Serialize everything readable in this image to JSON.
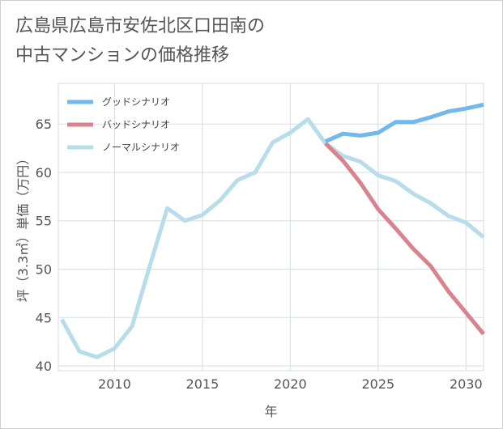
{
  "title_line1": "広島県広島市安佐北区口田南の",
  "title_line2": "中古マンションの価格推移",
  "chart_data": {
    "type": "line",
    "xlabel": "年",
    "ylabel": "坪（3.3㎡）単価（万円）",
    "xlim": [
      2006.8,
      2031
    ],
    "ylim": [
      39.5,
      69.2
    ],
    "x_ticks": [
      2010,
      2015,
      2020,
      2025,
      2030
    ],
    "y_ticks": [
      40,
      45,
      50,
      55,
      60,
      65
    ],
    "grid": true,
    "legend_position": "top-left",
    "series": [
      {
        "name": "グッドシナリオ",
        "color": "#72b8ec",
        "x": [
          2022,
          2023,
          2024,
          2025,
          2026,
          2027,
          2028,
          2029,
          2030,
          2031
        ],
        "values": [
          63.2,
          64.0,
          63.8,
          64.1,
          65.2,
          65.2,
          65.7,
          66.3,
          66.6,
          67.0
        ]
      },
      {
        "name": "バッドシナリオ",
        "color": "#d9838e",
        "x": [
          2022,
          2023,
          2024,
          2025,
          2026,
          2027,
          2028,
          2029,
          2030,
          2031
        ],
        "values": [
          63.0,
          61.2,
          58.9,
          56.2,
          54.2,
          52.1,
          50.3,
          47.7,
          45.5,
          43.3
        ]
      },
      {
        "name": "ノーマルシナリオ",
        "color": "#b7dcea",
        "x": [
          2007,
          2008,
          2009,
          2010,
          2011,
          2012,
          2013,
          2014,
          2015,
          2016,
          2017,
          2018,
          2019,
          2020,
          2021,
          2022,
          2023,
          2024,
          2025,
          2026,
          2027,
          2028,
          2029,
          2030,
          2031
        ],
        "values": [
          44.8,
          41.5,
          40.9,
          41.8,
          44.1,
          50.3,
          56.3,
          55.0,
          55.6,
          57.1,
          59.2,
          60.0,
          63.1,
          64.1,
          65.5,
          63.0,
          61.7,
          61.1,
          59.7,
          59.1,
          57.8,
          56.8,
          55.5,
          54.8,
          53.3
        ]
      }
    ]
  }
}
